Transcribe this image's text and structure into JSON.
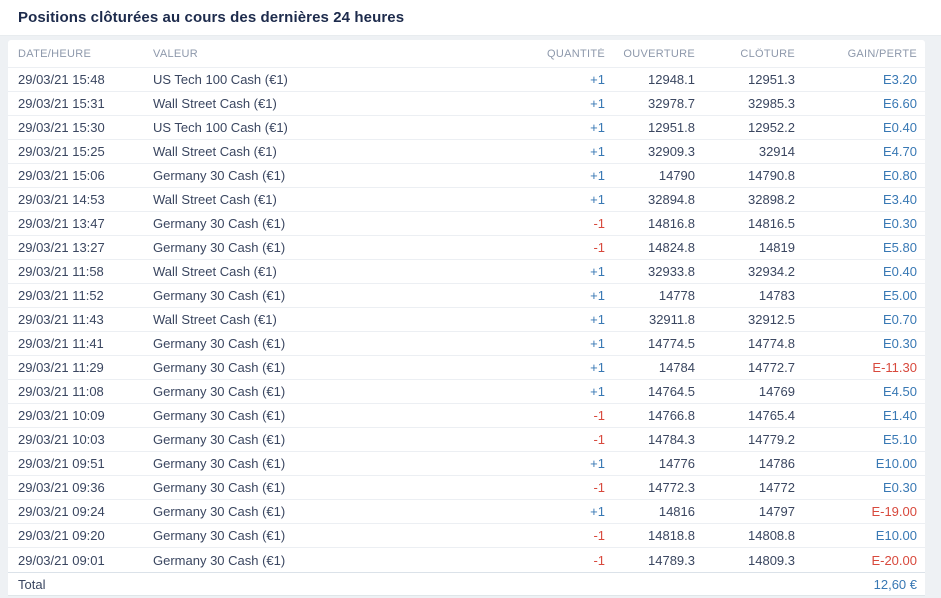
{
  "page": {
    "title": "Positions clôturées au cours des dernières 24 heures"
  },
  "table": {
    "columns": [
      "DATE/HEURE",
      "VALEUR",
      "QUANTITÉ",
      "OUVERTURE",
      "CLÔTURE",
      "GAIN/PERTE"
    ],
    "rows": [
      {
        "date": "29/03/21 15:48",
        "valeur": "US Tech 100 Cash (€1)",
        "quantite": "+1",
        "ouverture": "12948.1",
        "cloture": "12951.3",
        "gain": "E3.20"
      },
      {
        "date": "29/03/21 15:31",
        "valeur": "Wall Street Cash (€1)",
        "quantite": "+1",
        "ouverture": "32978.7",
        "cloture": "32985.3",
        "gain": "E6.60"
      },
      {
        "date": "29/03/21 15:30",
        "valeur": "US Tech 100 Cash (€1)",
        "quantite": "+1",
        "ouverture": "12951.8",
        "cloture": "12952.2",
        "gain": "E0.40"
      },
      {
        "date": "29/03/21 15:25",
        "valeur": "Wall Street Cash (€1)",
        "quantite": "+1",
        "ouverture": "32909.3",
        "cloture": "32914",
        "gain": "E4.70"
      },
      {
        "date": "29/03/21 15:06",
        "valeur": "Germany 30 Cash (€1)",
        "quantite": "+1",
        "ouverture": "14790",
        "cloture": "14790.8",
        "gain": "E0.80"
      },
      {
        "date": "29/03/21 14:53",
        "valeur": "Wall Street Cash (€1)",
        "quantite": "+1",
        "ouverture": "32894.8",
        "cloture": "32898.2",
        "gain": "E3.40"
      },
      {
        "date": "29/03/21 13:47",
        "valeur": "Germany 30 Cash (€1)",
        "quantite": "-1",
        "ouverture": "14816.8",
        "cloture": "14816.5",
        "gain": "E0.30"
      },
      {
        "date": "29/03/21 13:27",
        "valeur": "Germany 30 Cash (€1)",
        "quantite": "-1",
        "ouverture": "14824.8",
        "cloture": "14819",
        "gain": "E5.80"
      },
      {
        "date": "29/03/21 11:58",
        "valeur": "Wall Street Cash (€1)",
        "quantite": "+1",
        "ouverture": "32933.8",
        "cloture": "32934.2",
        "gain": "E0.40"
      },
      {
        "date": "29/03/21 11:52",
        "valeur": "Germany 30 Cash (€1)",
        "quantite": "+1",
        "ouverture": "14778",
        "cloture": "14783",
        "gain": "E5.00"
      },
      {
        "date": "29/03/21 11:43",
        "valeur": "Wall Street Cash (€1)",
        "quantite": "+1",
        "ouverture": "32911.8",
        "cloture": "32912.5",
        "gain": "E0.70"
      },
      {
        "date": "29/03/21 11:41",
        "valeur": "Germany 30 Cash (€1)",
        "quantite": "+1",
        "ouverture": "14774.5",
        "cloture": "14774.8",
        "gain": "E0.30"
      },
      {
        "date": "29/03/21 11:29",
        "valeur": "Germany 30 Cash (€1)",
        "quantite": "+1",
        "ouverture": "14784",
        "cloture": "14772.7",
        "gain": "E-11.30"
      },
      {
        "date": "29/03/21 11:08",
        "valeur": "Germany 30 Cash (€1)",
        "quantite": "+1",
        "ouverture": "14764.5",
        "cloture": "14769",
        "gain": "E4.50"
      },
      {
        "date": "29/03/21 10:09",
        "valeur": "Germany 30 Cash (€1)",
        "quantite": "-1",
        "ouverture": "14766.8",
        "cloture": "14765.4",
        "gain": "E1.40"
      },
      {
        "date": "29/03/21 10:03",
        "valeur": "Germany 30 Cash (€1)",
        "quantite": "-1",
        "ouverture": "14784.3",
        "cloture": "14779.2",
        "gain": "E5.10"
      },
      {
        "date": "29/03/21 09:51",
        "valeur": "Germany 30 Cash (€1)",
        "quantite": "+1",
        "ouverture": "14776",
        "cloture": "14786",
        "gain": "E10.00"
      },
      {
        "date": "29/03/21 09:36",
        "valeur": "Germany 30 Cash (€1)",
        "quantite": "-1",
        "ouverture": "14772.3",
        "cloture": "14772",
        "gain": "E0.30"
      },
      {
        "date": "29/03/21 09:24",
        "valeur": "Germany 30 Cash (€1)",
        "quantite": "+1",
        "ouverture": "14816",
        "cloture": "14797",
        "gain": "E-19.00"
      },
      {
        "date": "29/03/21 09:20",
        "valeur": "Germany 30 Cash (€1)",
        "quantite": "-1",
        "ouverture": "14818.8",
        "cloture": "14808.8",
        "gain": "E10.00"
      },
      {
        "date": "29/03/21 09:01",
        "valeur": "Germany 30 Cash (€1)",
        "quantite": "-1",
        "ouverture": "14789.3",
        "cloture": "14809.3",
        "gain": "E-20.00"
      }
    ],
    "total_label": "Total",
    "total_value": "12,60 €"
  },
  "colors": {
    "positive": "#3878b4",
    "negative": "#d8493d"
  }
}
